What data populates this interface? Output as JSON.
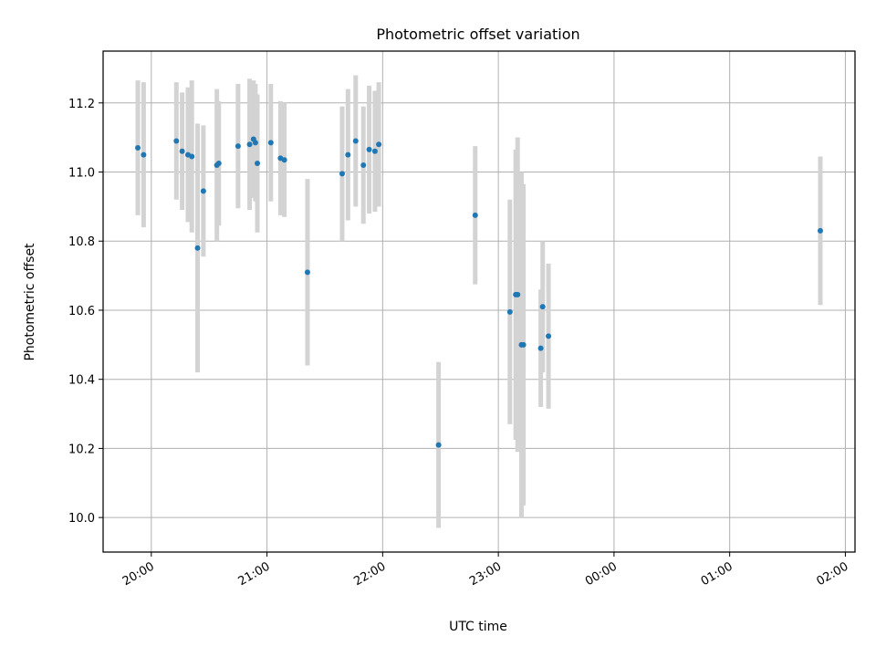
{
  "chart_data": {
    "type": "scatter",
    "title": "Photometric offset variation",
    "xlabel": "UTC time",
    "ylabel": "Photometric offset",
    "x_ticks": [
      "20:00",
      "21:00",
      "22:00",
      "23:00",
      "00:00",
      "01:00",
      "02:00"
    ],
    "xlim": [
      "19:35",
      "02:05"
    ],
    "ylim": [
      9.9,
      11.35
    ],
    "y_ticks": [
      "10.0",
      "10.2",
      "10.4",
      "10.6",
      "10.8",
      "11.0",
      "11.2"
    ],
    "grid": true,
    "series": [
      {
        "marker_color": "#1f77b4",
        "errorbar_color": "#d3d3d3",
        "points": [
          {
            "t": "19:53",
            "y": 11.07,
            "err": 0.195
          },
          {
            "t": "19:56",
            "y": 11.05,
            "err": 0.21
          },
          {
            "t": "20:13",
            "y": 11.09,
            "err": 0.17
          },
          {
            "t": "20:16",
            "y": 11.06,
            "err": 0.17
          },
          {
            "t": "20:19",
            "y": 11.05,
            "err": 0.195
          },
          {
            "t": "20:21",
            "y": 11.045,
            "err": 0.22
          },
          {
            "t": "20:24",
            "y": 10.78,
            "err": 0.36
          },
          {
            "t": "20:27",
            "y": 10.945,
            "err": 0.19
          },
          {
            "t": "20:34",
            "y": 11.02,
            "err": 0.22
          },
          {
            "t": "20:35",
            "y": 11.025,
            "err": 0.18
          },
          {
            "t": "20:45",
            "y": 11.075,
            "err": 0.18
          },
          {
            "t": "20:51",
            "y": 11.08,
            "err": 0.19
          },
          {
            "t": "20:53",
            "y": 11.095,
            "err": 0.17
          },
          {
            "t": "20:54",
            "y": 11.085,
            "err": 0.17
          },
          {
            "t": "20:55",
            "y": 11.025,
            "err": 0.2
          },
          {
            "t": "21:02",
            "y": 11.085,
            "err": 0.17
          },
          {
            "t": "21:07",
            "y": 11.04,
            "err": 0.165
          },
          {
            "t": "21:09",
            "y": 11.035,
            "err": 0.165
          },
          {
            "t": "21:21",
            "y": 10.71,
            "err": 0.27
          },
          {
            "t": "21:39",
            "y": 10.995,
            "err": 0.195
          },
          {
            "t": "21:42",
            "y": 11.05,
            "err": 0.19
          },
          {
            "t": "21:46",
            "y": 11.09,
            "err": 0.19
          },
          {
            "t": "21:50",
            "y": 11.02,
            "err": 0.17
          },
          {
            "t": "21:53",
            "y": 11.065,
            "err": 0.185
          },
          {
            "t": "21:56",
            "y": 11.06,
            "err": 0.175
          },
          {
            "t": "21:58",
            "y": 11.08,
            "err": 0.18
          },
          {
            "t": "22:29",
            "y": 10.21,
            "err": 0.24
          },
          {
            "t": "22:48",
            "y": 10.875,
            "err": 0.2
          },
          {
            "t": "23:06",
            "y": 10.595,
            "err": 0.325
          },
          {
            "t": "23:09",
            "y": 10.645,
            "err": 0.42
          },
          {
            "t": "23:10",
            "y": 10.645,
            "err": 0.455
          },
          {
            "t": "23:12",
            "y": 10.5,
            "err": 0.5
          },
          {
            "t": "23:13",
            "y": 10.5,
            "err": 0.465
          },
          {
            "t": "23:22",
            "y": 10.49,
            "err": 0.17
          },
          {
            "t": "23:23",
            "y": 10.61,
            "err": 0.19
          },
          {
            "t": "23:26",
            "y": 10.525,
            "err": 0.21
          },
          {
            "t": "01:47",
            "y": 10.83,
            "err": 0.215
          }
        ]
      }
    ]
  }
}
